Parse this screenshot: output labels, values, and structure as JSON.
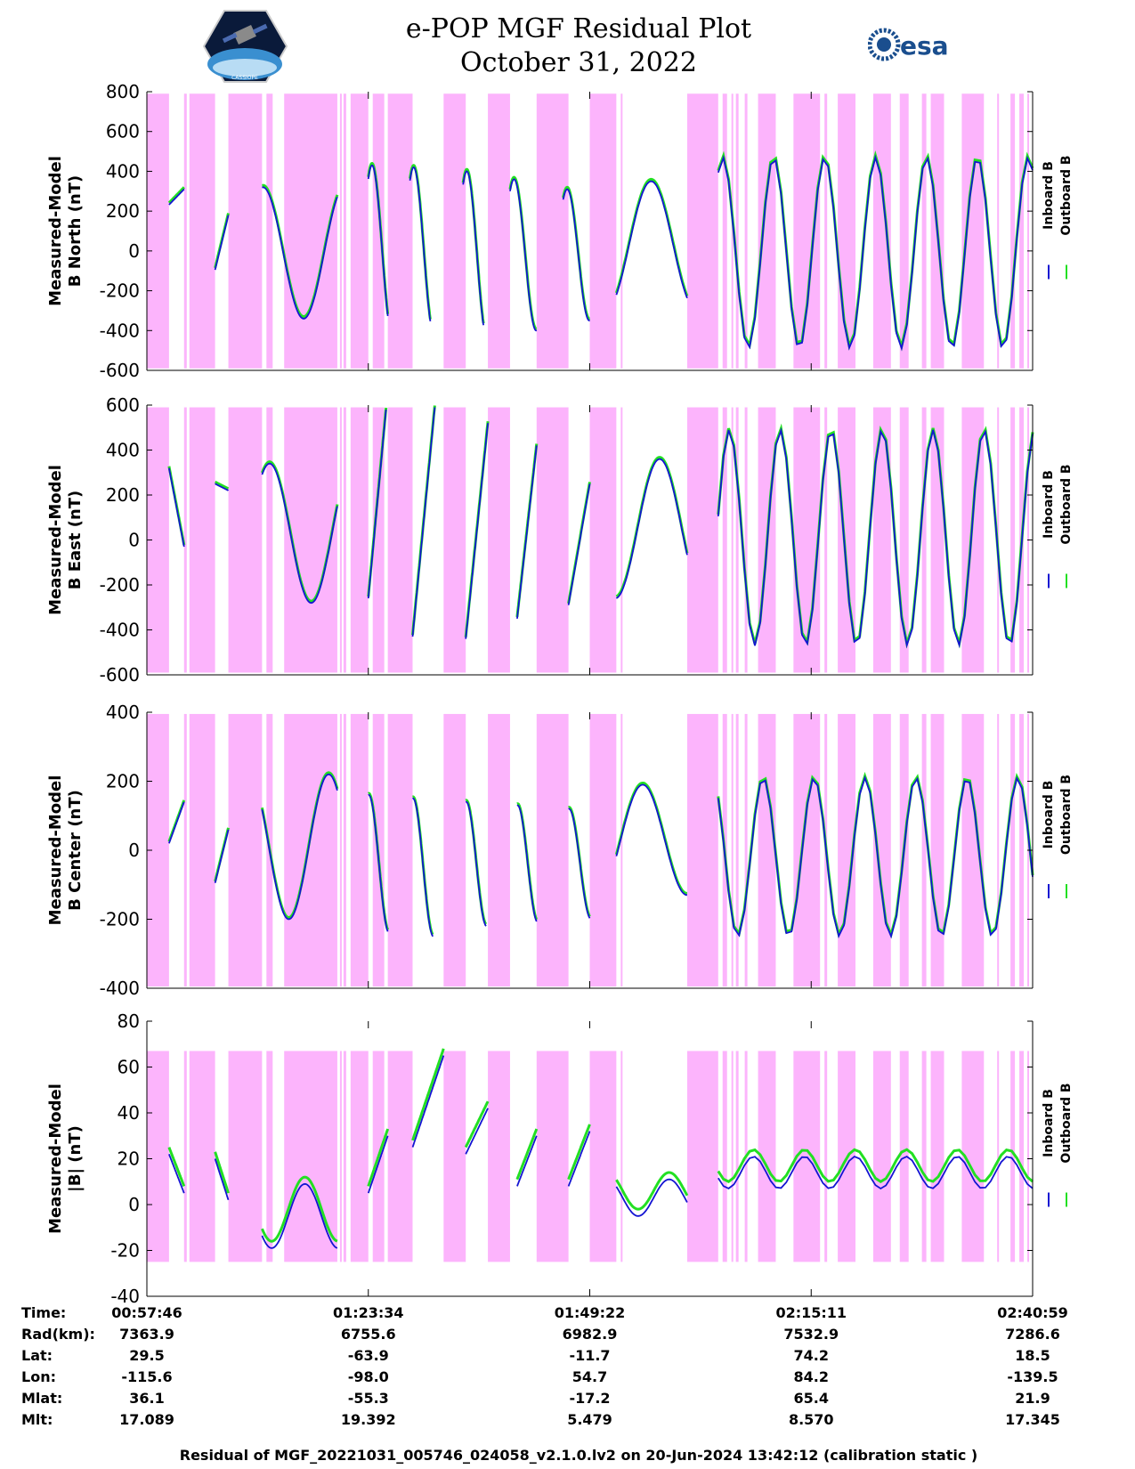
{
  "title": {
    "line1": "e-POP MGF Residual Plot",
    "line2": "October 31, 2022"
  },
  "logos": {
    "left": "CASSIOPE",
    "right": "esa"
  },
  "colors": {
    "inboard": "#1414d2",
    "outboard": "#22e022",
    "shade": "#fcb4fc"
  },
  "legend": {
    "inboard": "Inboard B",
    "outboard": "Outboard B"
  },
  "chart_data": [
    {
      "type": "line",
      "ylabel": "Measured-Model B North (nT)",
      "ylabel_lines": [
        "Measured-Model",
        "B North (nT)"
      ],
      "ylim": [
        -600,
        800
      ],
      "yticks": [
        800,
        600,
        400,
        200,
        0,
        -200,
        -400,
        -600
      ],
      "ytick_labels": [
        "800",
        "600",
        "400",
        "200",
        "0",
        "-200",
        "-400",
        "-600"
      ],
      "shade_range": [
        -590,
        790
      ],
      "series": [
        {
          "name": "Inboard B",
          "segments": [
            {
              "t": [
                0.025,
                0.042
              ],
              "osc": [
                0,
                0
              ],
              "base": [
                232,
                310
              ]
            },
            {
              "t": [
                0.077,
                0.092
              ],
              "osc": [
                0,
                0
              ],
              "base": [
                -95,
                180
              ]
            },
            {
              "t": [
                0.13,
                0.215
              ],
              "amp": 330,
              "period": 0.092,
              "phase": 1.5,
              "offset": -10
            },
            {
              "t": [
                0.25,
                0.272
              ],
              "amp": 430,
              "period": 0.046,
              "phase": 1.0,
              "offset": 0
            },
            {
              "t": [
                0.297,
                0.32
              ],
              "amp": 420,
              "period": 0.046,
              "phase": 1.0,
              "offset": 0
            },
            {
              "t": [
                0.357,
                0.38
              ],
              "amp": 420,
              "period": 0.046,
              "phase": 1.0,
              "offset": -20
            },
            {
              "t": [
                0.41,
                0.44
              ],
              "amp": 380,
              "period": 0.05,
              "phase": 1.0,
              "offset": -20
            },
            {
              "t": [
                0.47,
                0.5
              ],
              "amp": 330,
              "period": 0.05,
              "phase": 1.0,
              "offset": -20
            },
            {
              "t": [
                0.53,
                0.61
              ],
              "amp": 320,
              "period": 0.1,
              "phase": -0.9,
              "offset": 30
            },
            {
              "t": [
                0.645,
                1.0
              ],
              "amp": 480,
              "period": 0.0575,
              "phase": 1.0,
              "offset": -10
            }
          ]
        },
        {
          "name": "Outboard B",
          "offset_shift": 10
        }
      ]
    },
    {
      "type": "line",
      "ylabel": "Measured-Model B East (nT)",
      "ylabel_lines": [
        "Measured-Model",
        "B East (nT)"
      ],
      "ylim": [
        -600,
        600
      ],
      "yticks": [
        600,
        400,
        200,
        0,
        -200,
        -400,
        -600
      ],
      "ytick_labels": [
        "600",
        "400",
        "200",
        "0",
        "-200",
        "-400",
        "-600"
      ],
      "shade_range": [
        -590,
        590
      ],
      "series": [
        {
          "name": "Inboard B",
          "segments": [
            {
              "t": [
                0.025,
                0.042
              ],
              "osc": [
                0,
                0
              ],
              "base": [
                320,
                -30
              ]
            },
            {
              "t": [
                0.077,
                0.092
              ],
              "osc": [
                0,
                0
              ],
              "base": [
                250,
                220
              ]
            },
            {
              "t": [
                0.13,
                0.215
              ],
              "amp": 310,
              "period": 0.094,
              "phase": 1.0,
              "offset": 30
            },
            {
              "t": [
                0.25,
                0.27
              ],
              "osc": [
                0,
                0
              ],
              "base": [
                -260,
                580
              ]
            },
            {
              "t": [
                0.3,
                0.325
              ],
              "osc": [
                0,
                0
              ],
              "base": [
                -430,
                590
              ]
            },
            {
              "t": [
                0.36,
                0.385
              ],
              "osc": [
                0,
                0
              ],
              "base": [
                -440,
                520
              ]
            },
            {
              "t": [
                0.418,
                0.44
              ],
              "osc": [
                0,
                0
              ],
              "base": [
                -350,
                420
              ]
            },
            {
              "t": [
                0.476,
                0.5
              ],
              "osc": [
                0,
                0
              ],
              "base": [
                -290,
                250
              ]
            },
            {
              "t": [
                0.53,
                0.61
              ],
              "amp": 310,
              "period": 0.1,
              "phase": -1.5,
              "offset": 50
            },
            {
              "t": [
                0.645,
                1.0
              ],
              "amp": 480,
              "period": 0.0575,
              "phase": 0.2,
              "offset": 10
            }
          ]
        },
        {
          "name": "Outboard B",
          "offset_shift": 8
        }
      ]
    },
    {
      "type": "line",
      "ylabel": "Measured-Model B Center (nT)",
      "ylabel_lines": [
        "Measured-Model",
        "B Center (nT)"
      ],
      "ylim": [
        -400,
        400
      ],
      "yticks": [
        400,
        200,
        0,
        -200,
        -400
      ],
      "ytick_labels": [
        "400",
        "200",
        "0",
        "-200",
        "-400"
      ],
      "shade_range": [
        -395,
        395
      ],
      "series": [
        {
          "name": "Inboard B",
          "segments": [
            {
              "t": [
                0.025,
                0.042
              ],
              "osc": [
                0,
                0
              ],
              "base": [
                20,
                140
              ]
            },
            {
              "t": [
                0.077,
                0.092
              ],
              "osc": [
                0,
                0
              ],
              "base": [
                -95,
                60
              ]
            },
            {
              "t": [
                0.13,
                0.215
              ],
              "amp": 210,
              "period": 0.09,
              "phase": 2.6,
              "offset": 10
            },
            {
              "t": [
                0.25,
                0.272
              ],
              "amp": 200,
              "period": 0.046,
              "phase": 1.5,
              "offset": -40
            },
            {
              "t": [
                0.3,
                0.323
              ],
              "amp": 200,
              "period": 0.046,
              "phase": 1.5,
              "offset": -50
            },
            {
              "t": [
                0.36,
                0.383
              ],
              "amp": 180,
              "period": 0.046,
              "phase": 1.5,
              "offset": -40
            },
            {
              "t": [
                0.418,
                0.44
              ],
              "amp": 170,
              "period": 0.046,
              "phase": 1.5,
              "offset": -40
            },
            {
              "t": [
                0.476,
                0.5
              ],
              "amp": 160,
              "period": 0.05,
              "phase": 1.5,
              "offset": -40
            },
            {
              "t": [
                0.53,
                0.61
              ],
              "amp": 160,
              "period": 0.1,
              "phase": -0.3,
              "offset": 30
            },
            {
              "t": [
                0.645,
                1.0
              ],
              "amp": 230,
              "period": 0.0575,
              "phase": 2.3,
              "offset": -20
            }
          ]
        },
        {
          "name": "Outboard B",
          "offset_shift": 5
        }
      ]
    },
    {
      "type": "line",
      "ylabel": "Measured-Model |B| (nT)",
      "ylabel_lines": [
        "Measured-Model",
        "|B| (nT)"
      ],
      "ylim": [
        -40,
        80
      ],
      "yticks": [
        80,
        60,
        40,
        20,
        0,
        -20,
        -40
      ],
      "ytick_labels": [
        "80",
        "60",
        "40",
        "20",
        "0",
        "-20",
        "-40"
      ],
      "shade_range": [
        -25,
        67
      ],
      "series": [
        {
          "name": "Inboard B",
          "segments": [
            {
              "t": [
                0.025,
                0.042
              ],
              "osc": [
                0,
                0
              ],
              "base": [
                22,
                5
              ]
            },
            {
              "t": [
                0.077,
                0.092
              ],
              "osc": [
                0,
                0
              ],
              "base": [
                20,
                2
              ]
            },
            {
              "t": [
                0.13,
                0.215
              ],
              "amp": 14,
              "period": 0.075,
              "phase": 3.8,
              "offset": -5
            },
            {
              "t": [
                0.25,
                0.272
              ],
              "osc": [
                0,
                0
              ],
              "base": [
                5,
                30
              ]
            },
            {
              "t": [
                0.3,
                0.335
              ],
              "osc": [
                0,
                0
              ],
              "base": [
                25,
                65
              ]
            },
            {
              "t": [
                0.36,
                0.385
              ],
              "osc": [
                0,
                0
              ],
              "base": [
                22,
                42
              ]
            },
            {
              "t": [
                0.418,
                0.44
              ],
              "osc": [
                0,
                0
              ],
              "base": [
                8,
                30
              ]
            },
            {
              "t": [
                0.476,
                0.5
              ],
              "osc": [
                0,
                0
              ],
              "base": [
                8,
                32
              ]
            },
            {
              "t": [
                0.53,
                0.61
              ],
              "amp": 8,
              "period": 0.07,
              "phase": 2.5,
              "offset": 3
            },
            {
              "t": [
                0.645,
                1.0
              ],
              "amp": 7,
              "period": 0.0575,
              "phase": 3.5,
              "offset": 14
            }
          ]
        },
        {
          "name": "Outboard B",
          "offset_shift": 3
        }
      ]
    }
  ],
  "shading_spans": [
    [
      0.0,
      0.025
    ],
    [
      0.042,
      0.045
    ],
    [
      0.048,
      0.077
    ],
    [
      0.092,
      0.13
    ],
    [
      0.135,
      0.142
    ],
    [
      0.155,
      0.215
    ],
    [
      0.218,
      0.22
    ],
    [
      0.222,
      0.225
    ],
    [
      0.23,
      0.25
    ],
    [
      0.255,
      0.268
    ],
    [
      0.272,
      0.3
    ],
    [
      0.335,
      0.36
    ],
    [
      0.385,
      0.41
    ],
    [
      0.44,
      0.476
    ],
    [
      0.5,
      0.53
    ],
    [
      0.535,
      0.537
    ],
    [
      0.61,
      0.645
    ],
    [
      0.65,
      0.655
    ],
    [
      0.66,
      0.662
    ],
    [
      0.665,
      0.668
    ],
    [
      0.675,
      0.678
    ],
    [
      0.69,
      0.71
    ],
    [
      0.73,
      0.76
    ],
    [
      0.765,
      0.768
    ],
    [
      0.78,
      0.8
    ],
    [
      0.82,
      0.84
    ],
    [
      0.85,
      0.86
    ],
    [
      0.875,
      0.88
    ],
    [
      0.885,
      0.9
    ],
    [
      0.92,
      0.945
    ],
    [
      0.96,
      0.962
    ],
    [
      0.975,
      0.98
    ],
    [
      0.985,
      0.99
    ],
    [
      0.994,
      0.996
    ]
  ],
  "x_axis": {
    "tick_fractions": [
      0,
      0.25,
      0.5,
      0.75,
      1.0
    ]
  },
  "info": {
    "labels": [
      "Time:",
      "Rad(km):",
      "Lat:",
      "Lon:",
      "Mlat:",
      "Mlt:"
    ],
    "columns": [
      [
        "00:57:46",
        "7363.9",
        "29.5",
        "-115.6",
        "36.1",
        "17.089"
      ],
      [
        "01:23:34",
        "6755.6",
        "-63.9",
        "-98.0",
        "-55.3",
        "19.392"
      ],
      [
        "01:49:22",
        "6982.9",
        "-11.7",
        "54.7",
        "-17.2",
        "5.479"
      ],
      [
        "02:15:11",
        "7532.9",
        "74.2",
        "84.2",
        "65.4",
        "8.570"
      ],
      [
        "02:40:59",
        "7286.6",
        "18.5",
        "-139.5",
        "21.9",
        "17.345"
      ]
    ]
  },
  "footer": "Residual of MGF_20221031_005746_024058_v2.1.0.lv2 on 20-Jun-2024 13:42:12 (calibration static )"
}
